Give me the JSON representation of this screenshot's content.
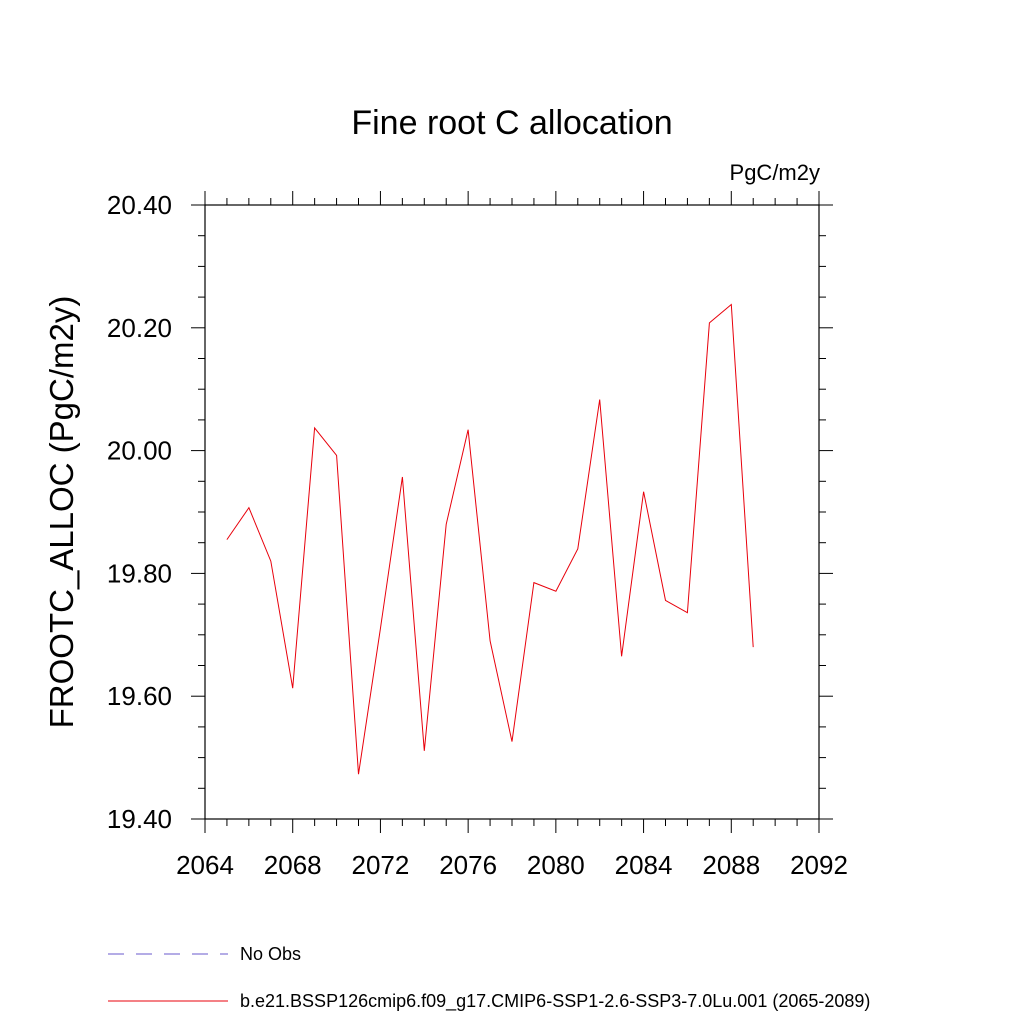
{
  "chart_data": {
    "type": "line",
    "title": "Fine root C allocation",
    "units_label": "PgC/m2y",
    "ylabel": "FROOTC_ALLOC  (PgC/m2y)",
    "xlabel": "",
    "xlim": [
      2064,
      2092
    ],
    "ylim": [
      19.4,
      20.4
    ],
    "x_ticks": [
      2064,
      2068,
      2072,
      2076,
      2080,
      2084,
      2088,
      2092
    ],
    "x_tick_labels": [
      "2064",
      "2068",
      "2072",
      "2076",
      "2080",
      "2084",
      "2088",
      "2092"
    ],
    "y_ticks": [
      19.4,
      19.6,
      19.8,
      20.0,
      20.2,
      20.4
    ],
    "y_tick_labels": [
      "19.40",
      "19.60",
      "19.80",
      "20.00",
      "20.20",
      "20.40"
    ],
    "grid": false,
    "legend_position": "bottom",
    "series": [
      {
        "name": "b.e21.BSSP126cmip6.f09_g17.CMIP6-SSP1-2.6-SSP3-7.0Lu.001 (2065-2089)",
        "color": "#e8000b",
        "x": [
          2065,
          2066,
          2067,
          2068,
          2069,
          2070,
          2071,
          2072,
          2073,
          2074,
          2075,
          2076,
          2077,
          2078,
          2079,
          2080,
          2081,
          2082,
          2083,
          2084,
          2085,
          2086,
          2087,
          2088,
          2089
        ],
        "values": [
          19.855,
          19.907,
          19.82,
          19.613,
          20.037,
          19.992,
          19.473,
          19.71,
          19.957,
          19.511,
          19.88,
          20.034,
          19.69,
          19.526,
          19.785,
          19.771,
          19.84,
          20.083,
          19.665,
          19.933,
          19.756,
          19.736,
          20.208,
          20.238,
          19.68
        ]
      }
    ],
    "legend": [
      {
        "label": "No Obs",
        "color": "#6a5acd",
        "style": "dashed"
      },
      {
        "label": "b.e21.BSSP126cmip6.f09_g17.CMIP6-SSP1-2.6-SSP3-7.0Lu.001 (2065-2089)",
        "color": "#e8000b",
        "style": "solid"
      }
    ]
  }
}
